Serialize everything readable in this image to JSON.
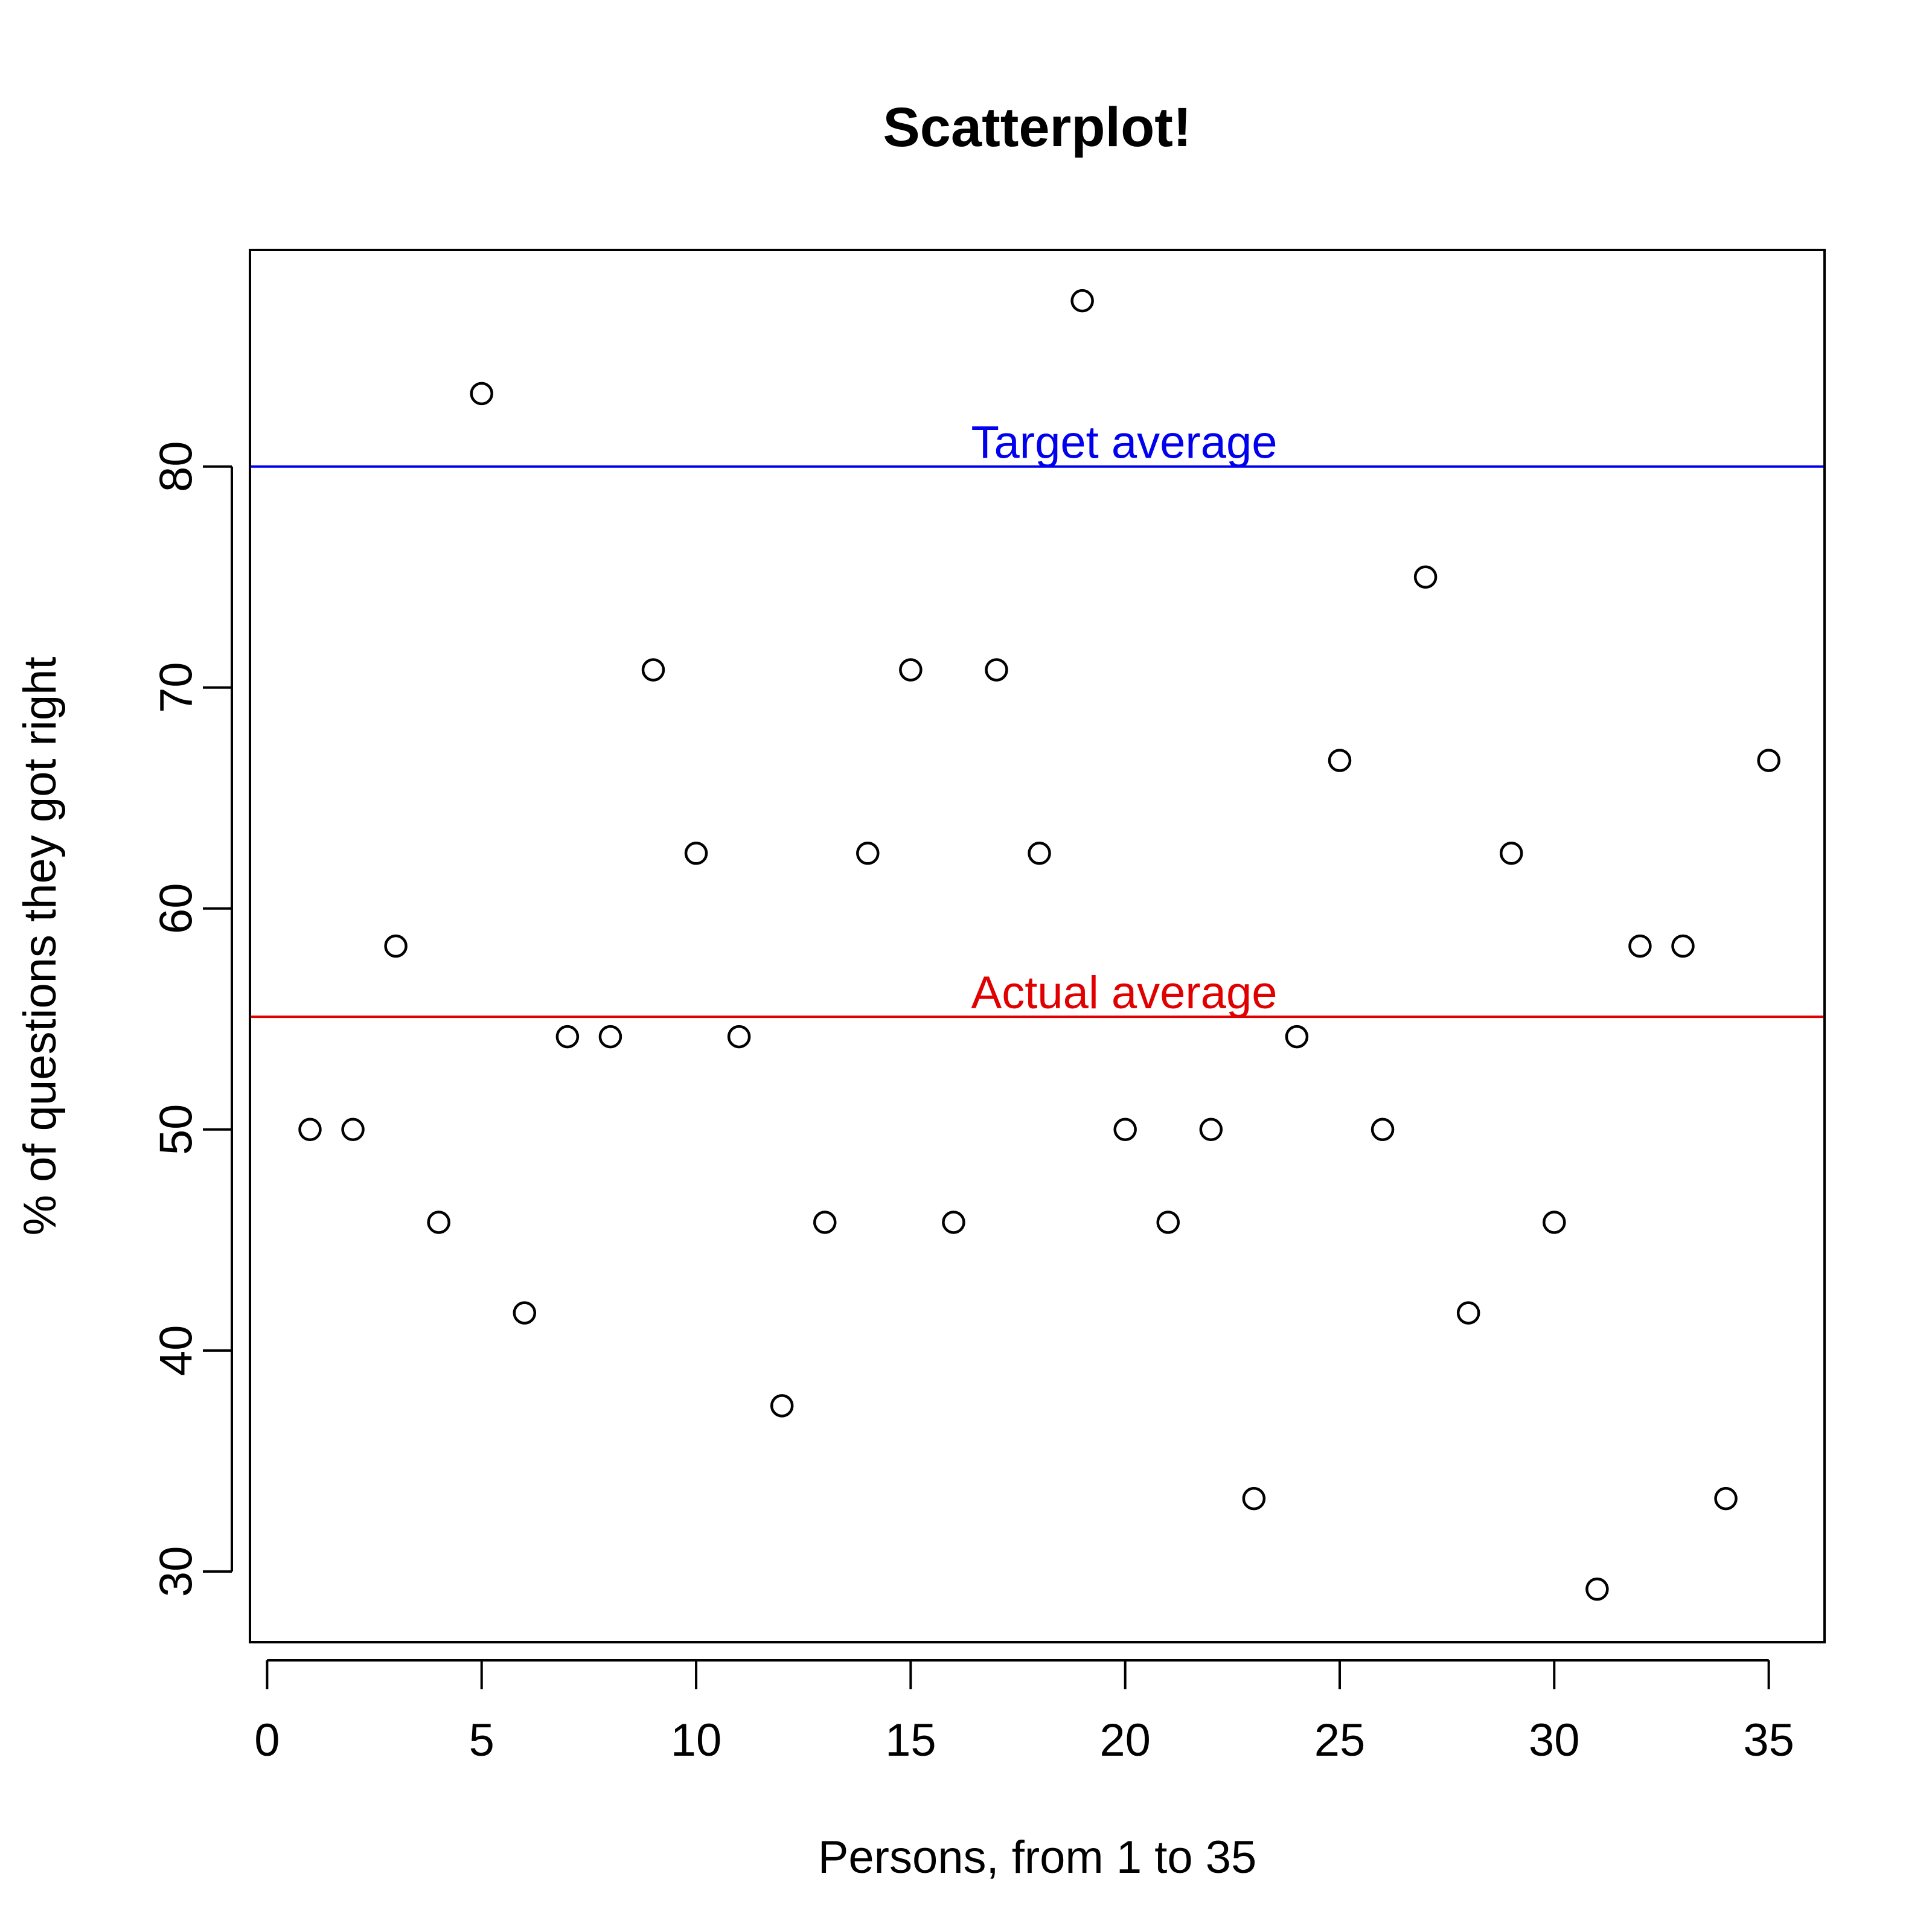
{
  "chart_data": {
    "type": "scatter",
    "title": "Scatterplot!",
    "xlabel": "Persons, from 1 to 35",
    "ylabel": "% of questions they got right",
    "xlim": [
      -0.4,
      36.3
    ],
    "ylim": [
      26.8,
      89.8
    ],
    "xticks": [
      0,
      5,
      10,
      15,
      20,
      25,
      30,
      35
    ],
    "yticks": [
      30,
      40,
      50,
      60,
      70,
      80
    ],
    "grid": false,
    "marker": "open-circle",
    "series": [
      {
        "x": [
          1,
          2,
          3,
          4,
          5,
          6,
          7,
          8,
          9,
          10,
          11,
          12,
          13,
          14,
          15,
          16,
          17,
          18,
          19,
          20,
          21,
          22,
          23,
          24,
          25,
          26,
          27,
          28,
          29,
          30,
          31,
          32,
          33,
          34,
          35
        ],
        "y": [
          50.0,
          50.0,
          58.3,
          45.8,
          83.3,
          41.7,
          54.2,
          54.2,
          70.8,
          62.5,
          54.2,
          37.5,
          45.8,
          62.5,
          70.8,
          45.8,
          70.8,
          62.5,
          87.5,
          50.0,
          45.8,
          50.0,
          33.3,
          54.2,
          66.7,
          50.0,
          75.0,
          41.7,
          62.5,
          45.8,
          29.2,
          58.3,
          58.3,
          33.3,
          66.7
        ]
      }
    ],
    "reference_lines": [
      {
        "label": "Target average",
        "y": 80.0,
        "color": "#0000ee"
      },
      {
        "label": "Actual average",
        "y": 55.1,
        "color": "#e00000"
      }
    ]
  }
}
